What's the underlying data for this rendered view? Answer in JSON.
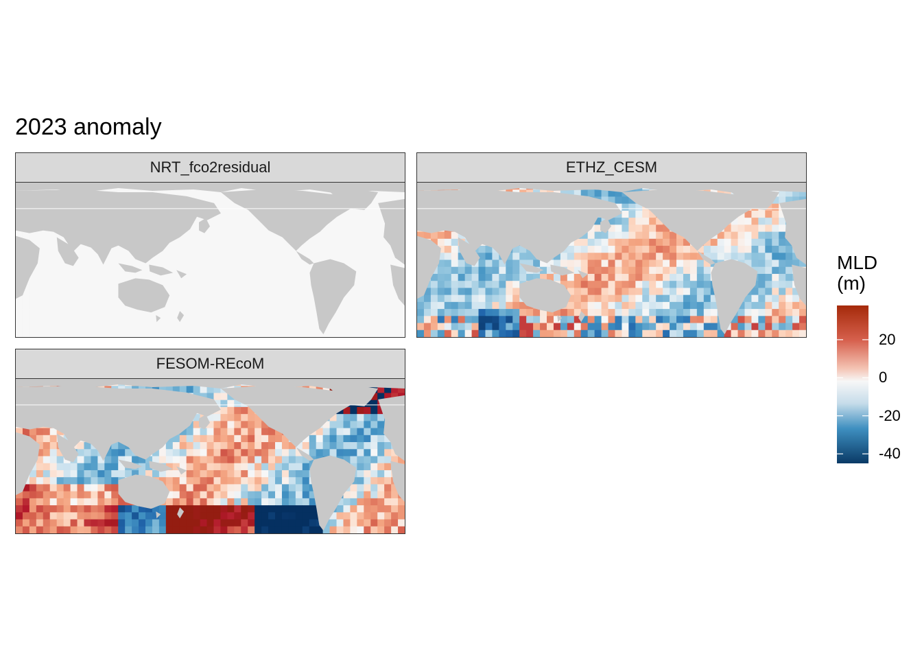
{
  "title": "2023 anomaly",
  "colors": {
    "land": "#c8c8c8",
    "neutral": "#f7f7f7",
    "strip_bg": "#d9d9d9",
    "scale": [
      "#053061",
      "#2166ac",
      "#4393c3",
      "#92c5de",
      "#d1e5f0",
      "#f7f7f7",
      "#fddbc7",
      "#f4a582",
      "#d6604d",
      "#b2182b",
      "#67001f"
    ]
  },
  "chart_data": {
    "type": "heatmap",
    "title": "2023 anomaly",
    "facets": [
      {
        "name": "NRT_fco2residual",
        "description": "near-zero anomaly everywhere",
        "value_range": [
          0,
          0
        ]
      },
      {
        "name": "ETHZ_CESM",
        "description": "weak anomalies, mostly between -20 and 20",
        "value_range": [
          -40,
          25
        ]
      },
      {
        "name": "FESOM-REcoM",
        "description": "strong Southern Ocean anomalies",
        "value_range": [
          -45,
          40
        ]
      }
    ],
    "legend": {
      "title": "MLD\n(m)",
      "title_lines": [
        "MLD",
        "(m)"
      ],
      "ticks": [
        20,
        0,
        -20,
        -40
      ],
      "tick_labels": [
        "20",
        "0",
        "-20",
        "-40"
      ],
      "limits": [
        -45,
        38
      ],
      "palette": "RdBu (reversed)",
      "placement": "right"
    }
  }
}
